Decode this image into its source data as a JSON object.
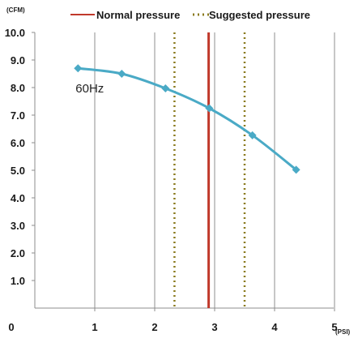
{
  "chart_data": {
    "type": "line",
    "title": "",
    "xlabel": "(PSI)",
    "ylabel": "(CFM)",
    "xlim": [
      0,
      5
    ],
    "ylim": [
      0,
      10
    ],
    "x_ticks": [
      "0",
      "1",
      "2",
      "3",
      "4",
      "5"
    ],
    "y_ticks": [
      "1.0",
      "2.0",
      "3.0",
      "4.0",
      "5.0",
      "6.0",
      "7.0",
      "8.0",
      "9.0",
      "10.0"
    ],
    "grid": {
      "vertical": true,
      "horizontal": false
    },
    "legend": {
      "placement": "top",
      "entries": [
        {
          "label": "Normal pressure",
          "style": "solid",
          "color": "#c0392b"
        },
        {
          "label": "Suggested pressure",
          "style": "dotted",
          "color": "#8a7a1e"
        }
      ]
    },
    "series": [
      {
        "name": "60Hz",
        "color": "#4aaac6",
        "x": [
          0.72,
          1.45,
          2.18,
          2.91,
          3.63,
          4.36
        ],
        "y": [
          8.7,
          8.5,
          7.97,
          7.25,
          6.27,
          5.02
        ]
      }
    ],
    "reference_lines": [
      {
        "x": 2.9,
        "style": "solid",
        "color": "#c0392b",
        "legend": "Normal pressure"
      },
      {
        "x": 2.33,
        "style": "dotted",
        "color": "#8a7a1e",
        "legend": "Suggested pressure"
      },
      {
        "x": 3.5,
        "style": "dotted",
        "color": "#8a7a1e",
        "legend": "Suggested pressure"
      }
    ],
    "annotations": [
      {
        "text": "60Hz"
      }
    ]
  }
}
